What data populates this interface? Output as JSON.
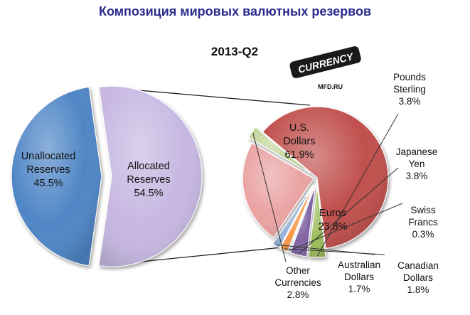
{
  "title": "Композиция мировых валютных резервов",
  "watermark": {
    "logo_text": "CURRENCY",
    "site": "MFD.RU"
  },
  "colors": {
    "unallocated": "#4f86c6",
    "allocated": "#c7b8e2",
    "usd": "#c0504d",
    "eur": "#eaa3a3",
    "gbp": "#9bbb59",
    "jpy": "#8064a2",
    "chf": "#4bacc6",
    "cad": "#f79646",
    "aud": "#95b3d7",
    "other": "#c3d69b",
    "title": "#2a2a8c",
    "connector": "#222222"
  },
  "chart_data": [
    {
      "type": "pie",
      "title": "",
      "series": [
        {
          "name": "",
          "slices": [
            {
              "label": "Unallocated Reserves",
              "label_lines": [
                "Unallocated",
                "Reserves"
              ],
              "value": 45.5,
              "value_label": "45.5%"
            },
            {
              "label": "Allocated Reserves",
              "label_lines": [
                "Allocated",
                "Reserves"
              ],
              "value": 54.5,
              "value_label": "54.5%"
            }
          ]
        }
      ]
    },
    {
      "type": "pie",
      "title": "2013-Q2",
      "series": [
        {
          "name": "",
          "slices": [
            {
              "label": "U.S. Dollars",
              "label_lines": [
                "U.S.",
                "Dollars"
              ],
              "value": 61.9,
              "value_label": "61.9%"
            },
            {
              "label": "Pounds Sterling",
              "label_lines": [
                "Pounds",
                "Sterling"
              ],
              "value": 3.8,
              "value_label": "3.8%"
            },
            {
              "label": "Japanese Yen",
              "label_lines": [
                "Japanese",
                "Yen"
              ],
              "value": 3.8,
              "value_label": "3.8%"
            },
            {
              "label": "Swiss Francs",
              "label_lines": [
                "Swiss",
                "Francs"
              ],
              "value": 0.3,
              "value_label": "0.3%"
            },
            {
              "label": "Canadian Dollars",
              "label_lines": [
                "Canadian",
                "Dollars"
              ],
              "value": 1.8,
              "value_label": "1.8%"
            },
            {
              "label": "Australian Dollars",
              "label_lines": [
                "Australian",
                "Dollars"
              ],
              "value": 1.7,
              "value_label": "1.7%"
            },
            {
              "label": "Euros",
              "label_lines": [
                "Euros"
              ],
              "value": 23.8,
              "value_label": "23.8%"
            },
            {
              "label": "Other Currencies",
              "label_lines": [
                "Other",
                "Currencies"
              ],
              "value": 2.8,
              "value_label": "2.8%"
            }
          ]
        }
      ]
    }
  ]
}
